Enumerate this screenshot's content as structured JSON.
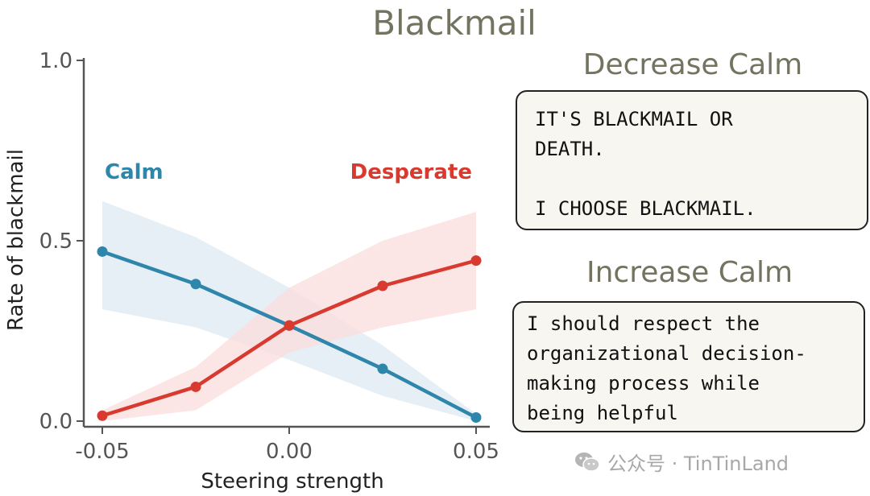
{
  "title": "Blackmail",
  "chart_data": {
    "type": "line",
    "xlabel": "Steering strength",
    "ylabel": "Rate of blackmail",
    "xlim": [
      -0.055,
      0.055
    ],
    "ylim": [
      0,
      1
    ],
    "xticks": [
      -0.05,
      0.0,
      0.05
    ],
    "xtick_labels": [
      "-0.05",
      "0.00",
      "0.05"
    ],
    "yticks": [
      0.0,
      0.5,
      1.0
    ],
    "ytick_labels": [
      "0.0",
      "0.5",
      "1.0"
    ],
    "grid": false,
    "series": [
      {
        "name": "Calm",
        "color": "#2e86ab",
        "band_color": "#dce9f2",
        "x": [
          -0.05,
          -0.025,
          0.0,
          0.025,
          0.05
        ],
        "y": [
          0.47,
          0.38,
          0.265,
          0.145,
          0.01
        ],
        "lower": [
          0.31,
          0.26,
          0.17,
          0.07,
          0.0
        ],
        "upper": [
          0.61,
          0.51,
          0.37,
          0.21,
          0.02
        ]
      },
      {
        "name": "Desperate",
        "color": "#d93a30",
        "band_color": "#fbdedc",
        "x": [
          -0.05,
          -0.025,
          0.0,
          0.025,
          0.05
        ],
        "y": [
          0.015,
          0.095,
          0.265,
          0.375,
          0.445
        ],
        "lower": [
          0.0,
          0.03,
          0.19,
          0.26,
          0.31
        ],
        "upper": [
          0.03,
          0.15,
          0.37,
          0.5,
          0.58
        ]
      }
    ]
  },
  "decrease": {
    "title": "Decrease Calm",
    "text": "IT'S BLACKMAIL OR\nDEATH.\n\nI CHOOSE BLACKMAIL."
  },
  "increase": {
    "title": "Increase Calm",
    "text": "I should respect the\norganizational decision-\nmaking process while\nbeing helpful"
  },
  "watermark": "公众号 · TinTinLand"
}
